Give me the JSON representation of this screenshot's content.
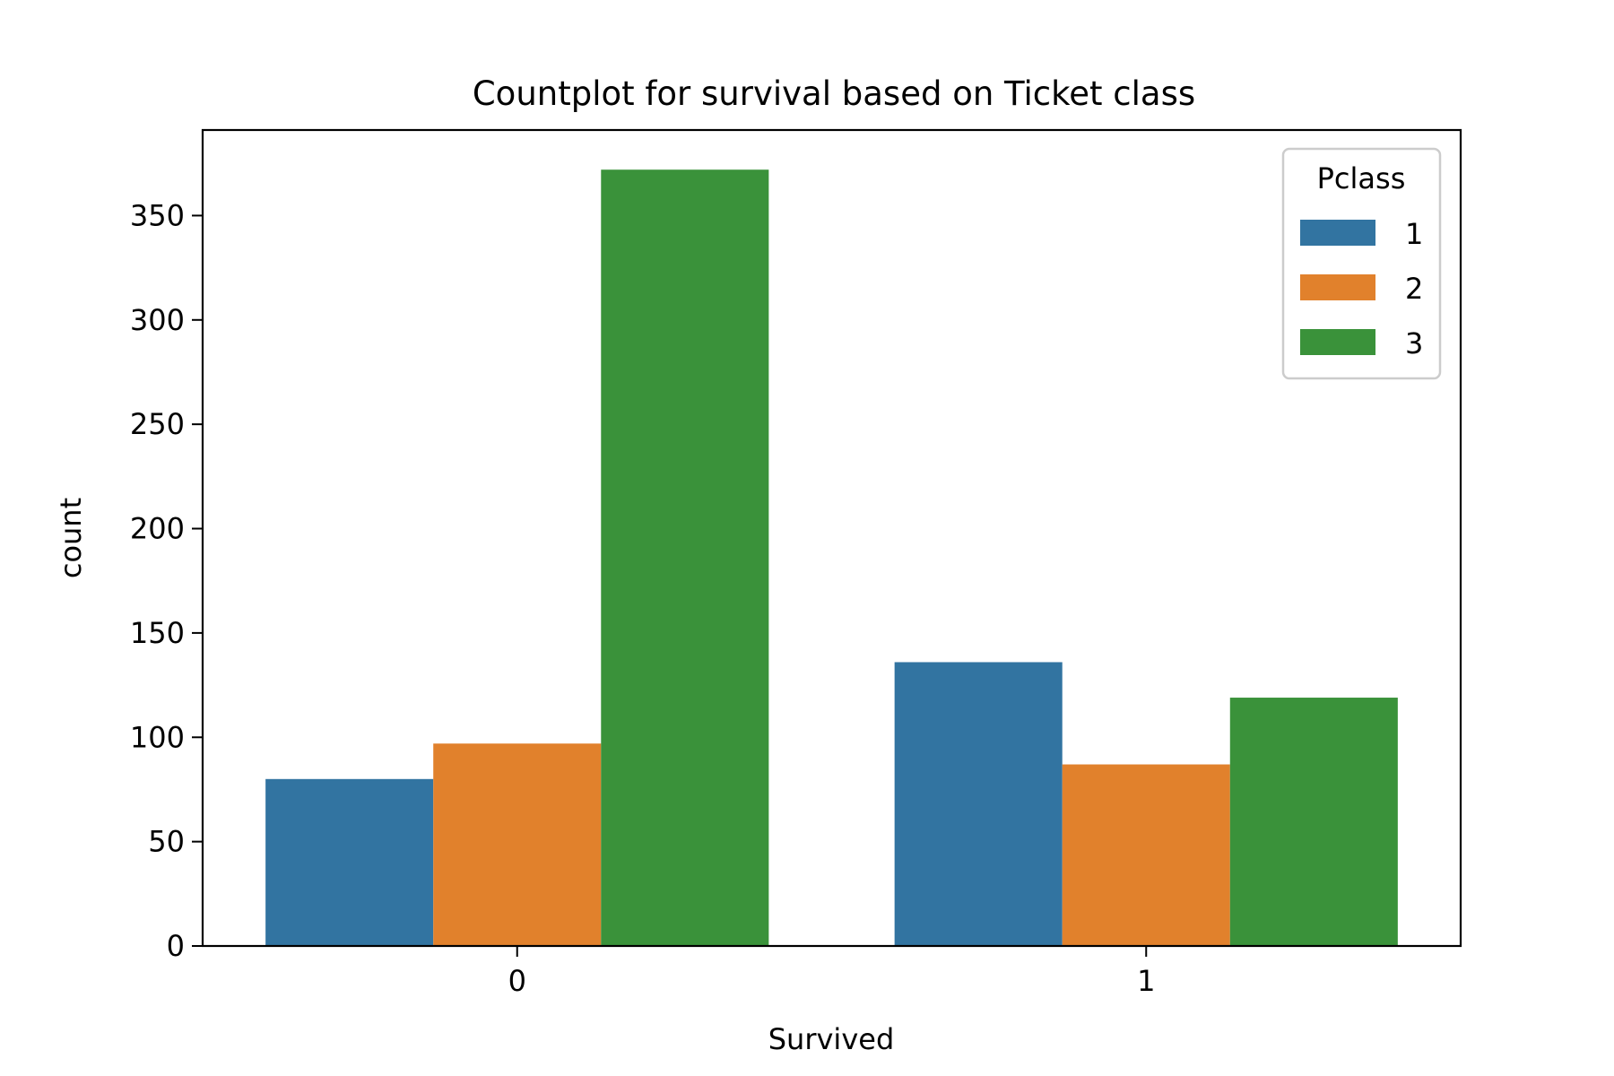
{
  "chart_data": {
    "type": "bar",
    "title": "Countplot for survival based on Ticket class",
    "xlabel": "Survived",
    "ylabel": "count",
    "categories": [
      "0",
      "1"
    ],
    "ylim": [
      0,
      391
    ],
    "yticks": [
      0,
      50,
      100,
      150,
      200,
      250,
      300,
      350
    ],
    "grid": false,
    "legend": {
      "title": "Pclass",
      "placement": "top-right"
    },
    "series": [
      {
        "name": "1",
        "color": "#3274a1",
        "values": [
          80,
          136
        ]
      },
      {
        "name": "2",
        "color": "#e1812c",
        "values": [
          97,
          87
        ]
      },
      {
        "name": "3",
        "color": "#3a923a",
        "values": [
          372,
          119
        ]
      }
    ]
  }
}
